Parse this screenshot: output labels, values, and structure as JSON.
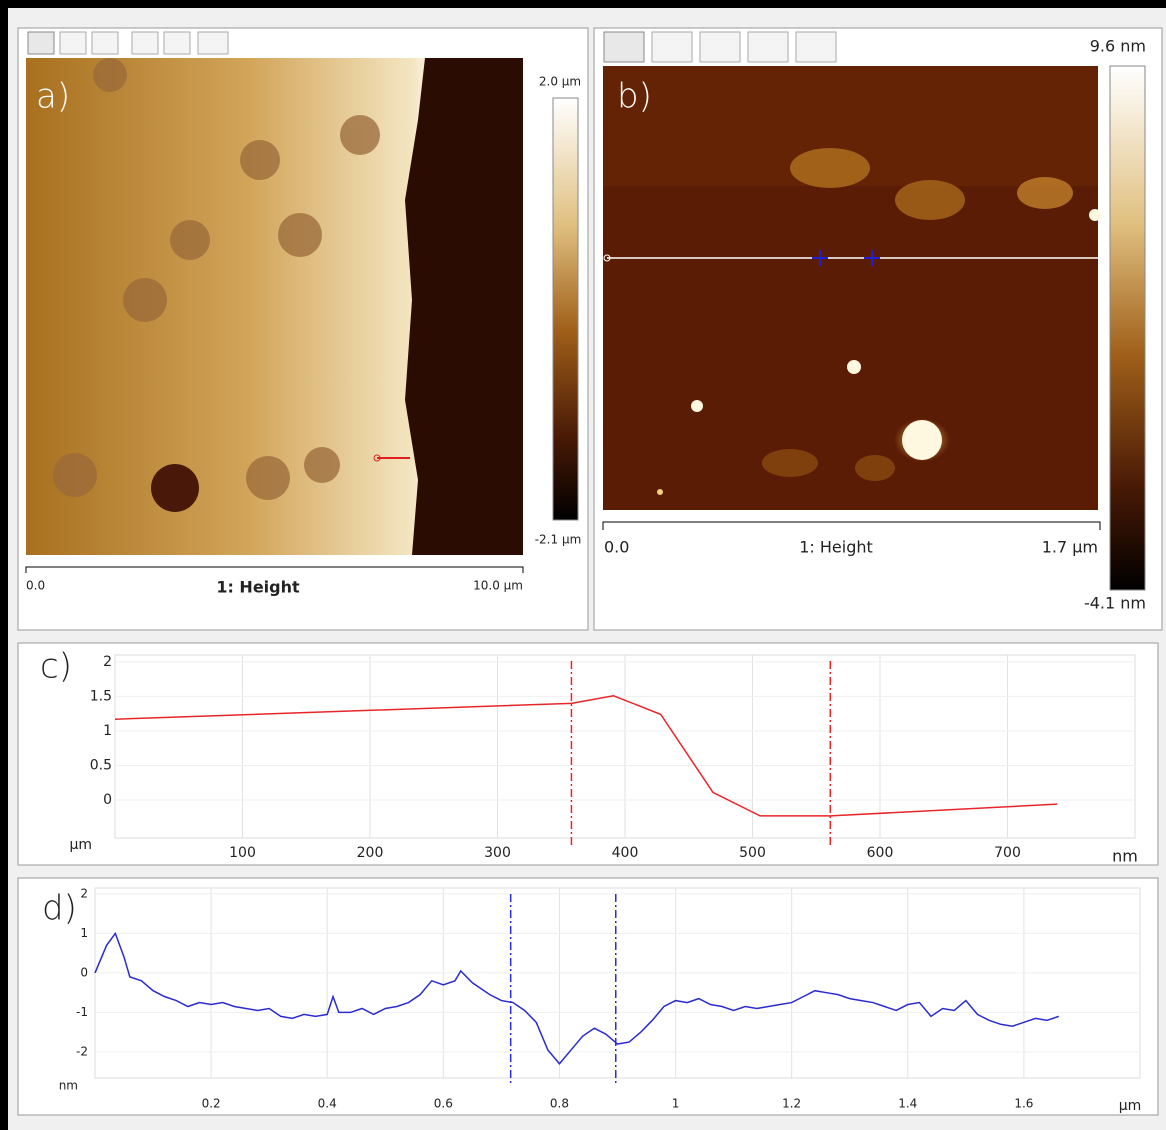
{
  "images": [
    {
      "label": "a)",
      "colorbar_max": "2.0 µm",
      "colorbar_min": "-2.1 µm",
      "scale_start": "0.0",
      "channel": "1: Height",
      "scale_end": "10.0 µm"
    },
    {
      "label": "b)",
      "colorbar_max": "9.6 nm",
      "colorbar_min": "-4.1 nm",
      "scale_start": "0.0",
      "channel": "1: Height",
      "scale_end": "1.7 µm"
    }
  ],
  "chart_data": [
    {
      "type": "line",
      "label": "c)",
      "x_unit": "nm",
      "y_unit": "µm",
      "x": [
        0,
        358,
        391,
        428,
        469,
        506,
        561,
        739
      ],
      "series": [
        {
          "color": "#e8262a",
          "values": [
            1.17,
            1.4,
            1.51,
            1.24,
            0.11,
            -0.23,
            -0.23,
            -0.06
          ]
        }
      ],
      "cursors": [
        358,
        561
      ],
      "cursor_color": "#e8262a",
      "xlim": [
        0,
        800
      ],
      "xticks": [
        100,
        200,
        300,
        400,
        500,
        600,
        700
      ],
      "ylim": [
        -0.55,
        2.1
      ],
      "yticks": [
        2,
        1.5,
        1,
        0.5,
        0
      ],
      "grid": true
    },
    {
      "type": "line",
      "label": "d)",
      "x_unit": "µm",
      "y_unit": "nm",
      "x": [
        0,
        0.02,
        0.035,
        0.05,
        0.06,
        0.08,
        0.1,
        0.12,
        0.14,
        0.16,
        0.18,
        0.2,
        0.22,
        0.24,
        0.26,
        0.28,
        0.3,
        0.32,
        0.34,
        0.36,
        0.38,
        0.4,
        0.41,
        0.42,
        0.44,
        0.46,
        0.48,
        0.5,
        0.52,
        0.54,
        0.56,
        0.58,
        0.6,
        0.62,
        0.63,
        0.65,
        0.68,
        0.7,
        0.72,
        0.74,
        0.76,
        0.78,
        0.8,
        0.82,
        0.84,
        0.86,
        0.88,
        0.9,
        0.92,
        0.94,
        0.96,
        0.98,
        1.0,
        1.02,
        1.04,
        1.06,
        1.08,
        1.1,
        1.12,
        1.14,
        1.16,
        1.18,
        1.2,
        1.22,
        1.24,
        1.26,
        1.28,
        1.3,
        1.32,
        1.34,
        1.36,
        1.38,
        1.4,
        1.42,
        1.44,
        1.46,
        1.48,
        1.5,
        1.52,
        1.54,
        1.56,
        1.58,
        1.6,
        1.62,
        1.64,
        1.66
      ],
      "series": [
        {
          "color": "#2b2bd0",
          "values": [
            0,
            0.7,
            1.0,
            0.4,
            -0.1,
            -0.2,
            -0.45,
            -0.6,
            -0.7,
            -0.85,
            -0.75,
            -0.8,
            -0.75,
            -0.85,
            -0.9,
            -0.95,
            -0.9,
            -1.1,
            -1.15,
            -1.05,
            -1.1,
            -1.05,
            -0.6,
            -1.0,
            -1.0,
            -0.9,
            -1.05,
            -0.9,
            -0.85,
            -0.75,
            -0.55,
            -0.2,
            -0.3,
            -0.2,
            0.05,
            -0.25,
            -0.55,
            -0.7,
            -0.75,
            -0.95,
            -1.25,
            -1.95,
            -2.3,
            -1.95,
            -1.6,
            -1.4,
            -1.55,
            -1.8,
            -1.75,
            -1.5,
            -1.2,
            -0.85,
            -0.7,
            -0.75,
            -0.65,
            -0.8,
            -0.85,
            -0.95,
            -0.85,
            -0.9,
            -0.85,
            -0.8,
            -0.75,
            -0.6,
            -0.45,
            -0.5,
            -0.55,
            -0.65,
            -0.7,
            -0.75,
            -0.85,
            -0.95,
            -0.8,
            -0.75,
            -1.1,
            -0.9,
            -0.95,
            -0.7,
            -1.05,
            -1.2,
            -1.3,
            -1.35,
            -1.25,
            -1.15,
            -1.2,
            -1.1
          ]
        }
      ],
      "cursors": [
        0.716,
        0.897
      ],
      "cursor_color": "#2b2bd0",
      "xlim": [
        0,
        1.8
      ],
      "xticks": [
        0.2,
        0.4,
        0.6,
        0.8,
        1,
        1.2,
        1.4,
        1.6
      ],
      "ylim": [
        -2.66,
        2.15
      ],
      "yticks": [
        2,
        1,
        0,
        -1,
        -2
      ],
      "grid": true
    }
  ]
}
